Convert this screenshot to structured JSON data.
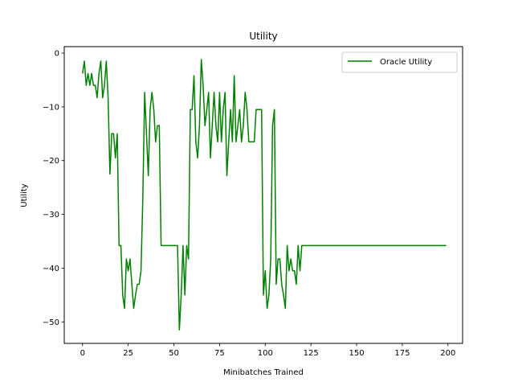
{
  "chart_data": {
    "type": "line",
    "title": "Utility",
    "xlabel": "Minibatches Trained",
    "ylabel": "Utility",
    "xlim": [
      -10,
      208
    ],
    "ylim": [
      -54,
      1.2
    ],
    "xticks": [
      0,
      25,
      50,
      75,
      100,
      125,
      150,
      175,
      200
    ],
    "yticks": [
      0,
      -10,
      -20,
      -30,
      -40,
      -50
    ],
    "legend_position": "top-right",
    "grid": false,
    "series": [
      {
        "name": "Oracle Utility",
        "color": "#008000",
        "x": [
          0,
          1,
          2,
          3,
          4,
          5,
          6,
          7,
          8,
          9,
          10,
          11,
          12,
          13,
          14,
          15,
          16,
          17,
          18,
          19,
          20,
          21,
          22,
          23,
          24,
          25,
          26,
          27,
          28,
          29,
          30,
          31,
          32,
          33,
          34,
          35,
          36,
          37,
          38,
          39,
          40,
          41,
          42,
          43,
          44,
          45,
          46,
          47,
          48,
          49,
          50,
          51,
          52,
          53,
          54,
          55,
          56,
          57,
          58,
          59,
          60,
          61,
          62,
          63,
          64,
          65,
          66,
          67,
          68,
          69,
          70,
          71,
          72,
          73,
          74,
          75,
          76,
          77,
          78,
          79,
          80,
          81,
          82,
          83,
          84,
          85,
          86,
          87,
          88,
          89,
          90,
          91,
          92,
          93,
          94,
          95,
          96,
          97,
          98,
          99,
          100,
          101,
          102,
          103,
          104,
          105,
          106,
          107,
          108,
          109,
          110,
          111,
          112,
          113,
          114,
          115,
          116,
          117,
          118,
          119,
          120,
          199
        ],
        "y": [
          -3.8,
          -1.5,
          -6,
          -3.8,
          -6,
          -3.8,
          -6,
          -6,
          -8.3,
          -3.8,
          -1.5,
          -8.3,
          -6,
          -1.5,
          -8.3,
          -22.5,
          -15,
          -15,
          -19.5,
          -15,
          -35.8,
          -35.8,
          -45,
          -47.5,
          -38.3,
          -40.5,
          -38.3,
          -43,
          -47.5,
          -45,
          -43,
          -43,
          -40.5,
          -27,
          -7.3,
          -15,
          -22.8,
          -10.5,
          -7.3,
          -10.5,
          -16.5,
          -13.5,
          -13.5,
          -35.8,
          -35.8,
          -35.8,
          -35.8,
          -35.8,
          -35.8,
          -35.8,
          -35.8,
          -35.8,
          -35.8,
          -51.5,
          -45,
          -35.8,
          -45,
          -35.8,
          -38.3,
          -10.5,
          -10.5,
          -4.2,
          -16.5,
          -19.5,
          -13.5,
          -1.2,
          -6,
          -13.5,
          -10.5,
          -7.3,
          -19.5,
          -13.5,
          -7.3,
          -13.5,
          -16.5,
          -7.3,
          -16.5,
          -10.5,
          -7.3,
          -22.8,
          -16.5,
          -10.5,
          -16.5,
          -4.2,
          -16.5,
          -13.5,
          -10.5,
          -16.5,
          -13.5,
          -7.3,
          -10.5,
          -16.5,
          -16.5,
          -16.5,
          -16.5,
          -10.5,
          -10.5,
          -10.5,
          -10.5,
          -45,
          -40.5,
          -47.5,
          -45,
          -38.3,
          -13.5,
          -10.5,
          -43,
          -38.3,
          -38.3,
          -43,
          -45,
          -47.5,
          -35.8,
          -40.5,
          -38.3,
          -40.5,
          -40.5,
          -43,
          -35.8,
          -40.5,
          -35.8,
          -35.8
        ]
      }
    ]
  }
}
